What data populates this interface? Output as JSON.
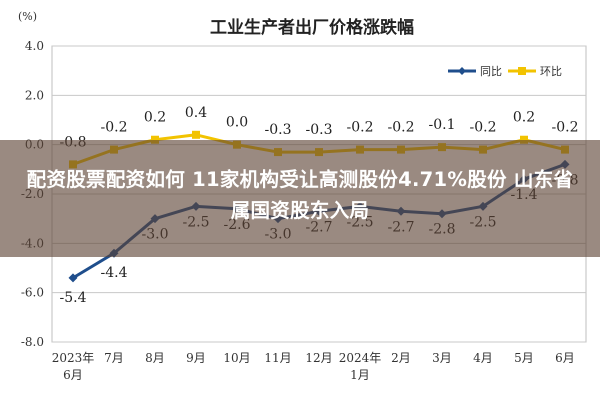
{
  "colors": {
    "tongbi": "#1f4e8c",
    "huanbi": "#f2c300",
    "grid": "#c8c8c8",
    "text": "#333333"
  },
  "overlay": {
    "headline": "配资股票配资如何 11家机构受让高测股份4.71%股份 山东省属国资股东入局"
  },
  "chart_data": {
    "type": "line",
    "title": "工业生产者出厂价格涨跌幅",
    "ylabel": "(%)",
    "xlabel": "",
    "ylim": [
      -8.0,
      4.0
    ],
    "yticks": [
      "4.0",
      "2.0",
      "0.0",
      "-2.0",
      "-4.0",
      "-6.0",
      "-8.0"
    ],
    "grid": true,
    "legend_position": "top-right",
    "categories": [
      "2023年\n6月",
      "7月",
      "8月",
      "9月",
      "10月",
      "11月",
      "12月",
      "2024年\n1月",
      "2月",
      "3月",
      "4月",
      "5月",
      "6月"
    ],
    "series": [
      {
        "name": "同比",
        "color": "#1f4e8c",
        "values": [
          -5.4,
          -4.4,
          -3.0,
          -2.5,
          -2.6,
          -3.0,
          -2.7,
          -2.5,
          -2.7,
          -2.8,
          -2.5,
          -1.4,
          -0.8
        ],
        "labels": [
          "-5.4",
          "-4.4",
          "-3.0",
          "-2.5",
          "-2.6",
          "-3.0",
          "-2.7",
          "-2.5",
          "-2.7",
          "-2.8",
          "-2.5",
          "-1.4",
          "-0.8"
        ]
      },
      {
        "name": "环比",
        "color": "#f2c300",
        "values": [
          -0.8,
          -0.2,
          0.2,
          0.4,
          0.0,
          -0.3,
          -0.3,
          -0.2,
          -0.2,
          -0.1,
          -0.2,
          0.2,
          -0.2
        ],
        "labels": [
          "-0.8",
          "-0.2",
          "0.2",
          "0.4",
          "0.0",
          "-0.3",
          "-0.3",
          "-0.2",
          "-0.2",
          "-0.1",
          "-0.2",
          "0.2",
          "-0.2"
        ]
      }
    ]
  }
}
